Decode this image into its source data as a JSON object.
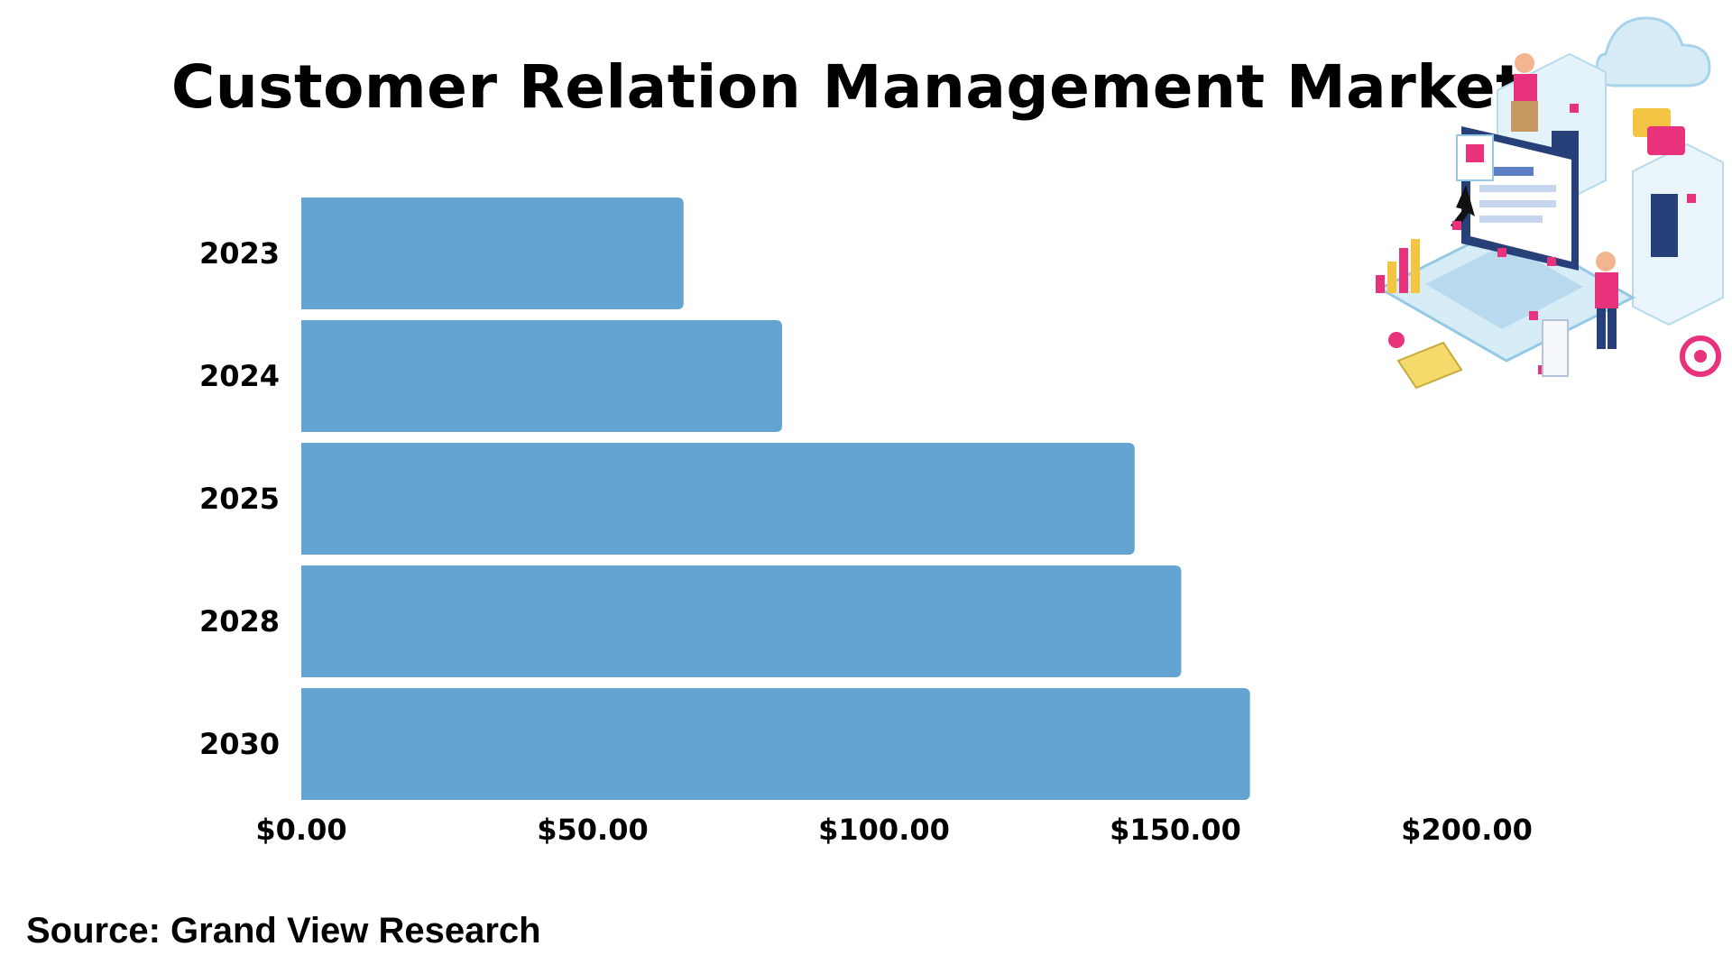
{
  "title": "Customer Relation Management Market",
  "source": "Source: Grand View Research",
  "colors": {
    "bar": "#63a4d1",
    "background": "#ffffff",
    "text": "#000000",
    "accent_pink": "#e8327c"
  },
  "illustration": {
    "icon": "crm-isometric-illustration-icon"
  },
  "chart_data": {
    "type": "bar",
    "orientation": "horizontal",
    "title": "Customer Relation Management Market",
    "xlabel": "",
    "ylabel": "",
    "categories": [
      "2023",
      "2024",
      "2025",
      "2028",
      "2030"
    ],
    "values": [
      65.6,
      82.5,
      143.0,
      151.0,
      162.8
    ],
    "xlim": [
      0,
      200
    ],
    "xticks": [
      "$0.00",
      "$50.00",
      "$100.00",
      "$150.00",
      "$200.00"
    ],
    "xtick_values": [
      0,
      50,
      100,
      150,
      200
    ],
    "grid": false,
    "legend": "none"
  }
}
